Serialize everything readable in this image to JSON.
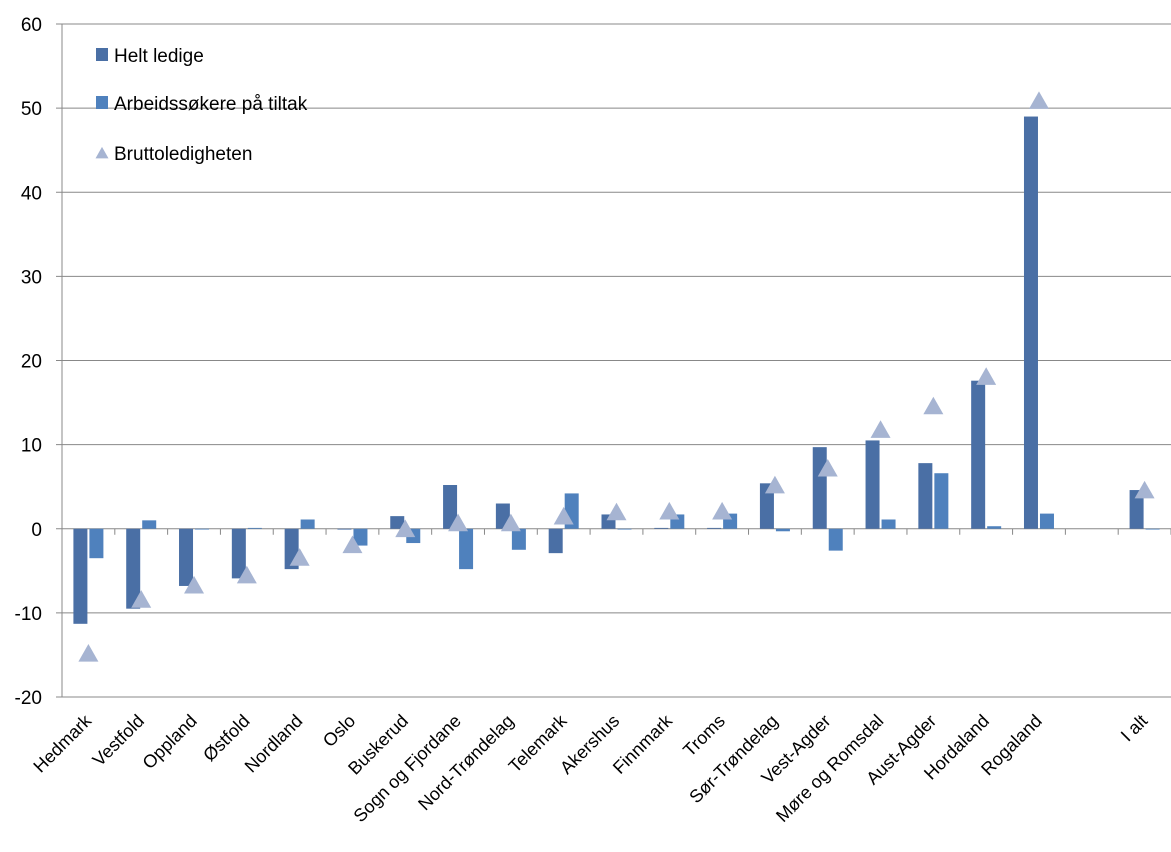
{
  "chart_data": {
    "type": "bar",
    "categories": [
      "Hedmark",
      "Vestfold",
      "Oppland",
      "Østfold",
      "Nordland",
      "Oslo",
      "Buskerud",
      "Sogn og Fjordane",
      "Nord-Trøndelag",
      "Telemark",
      "Akershus",
      "Finnmark",
      "Troms",
      "Sør-Trøndelag",
      "Vest-Agder",
      "Møre og Romsdal",
      "Aust-Agder",
      "Hordaland",
      "Rogaland",
      "",
      "I alt"
    ],
    "series": [
      {
        "name": "Helt ledige",
        "type": "bar",
        "color": "#4a6fa5",
        "values": [
          -11.3,
          -9.5,
          -6.8,
          -5.9,
          -4.8,
          -0.1,
          1.5,
          5.2,
          3.0,
          -2.9,
          1.7,
          0.1,
          0.1,
          5.4,
          9.7,
          10.5,
          7.8,
          17.6,
          49.0,
          null,
          4.6
        ]
      },
      {
        "name": "Arbeidssøkere på tiltak",
        "type": "bar",
        "color": "#4f81bd",
        "values": [
          -3.5,
          1.0,
          0.0,
          0.1,
          1.1,
          -2.0,
          -1.7,
          -4.8,
          -2.5,
          4.2,
          0.0,
          1.7,
          1.8,
          -0.3,
          -2.6,
          1.1,
          6.6,
          0.3,
          1.8,
          null,
          0.0
        ]
      },
      {
        "name": "Bruttoledigheten",
        "type": "marker",
        "color": "#a6b4d2",
        "values": [
          -15.0,
          -8.6,
          -6.9,
          -5.7,
          -3.6,
          -2.1,
          -0.2,
          0.5,
          0.5,
          1.3,
          1.8,
          1.9,
          1.9,
          5.0,
          7.0,
          11.6,
          14.4,
          17.9,
          50.7,
          null,
          4.4
        ]
      }
    ],
    "ylim": [
      -20,
      60
    ],
    "yticks": [
      -20,
      -10,
      0,
      10,
      20,
      30,
      40,
      50,
      60
    ],
    "xlabel": "",
    "ylabel": "",
    "grid": true,
    "legend_position": "top-left"
  }
}
